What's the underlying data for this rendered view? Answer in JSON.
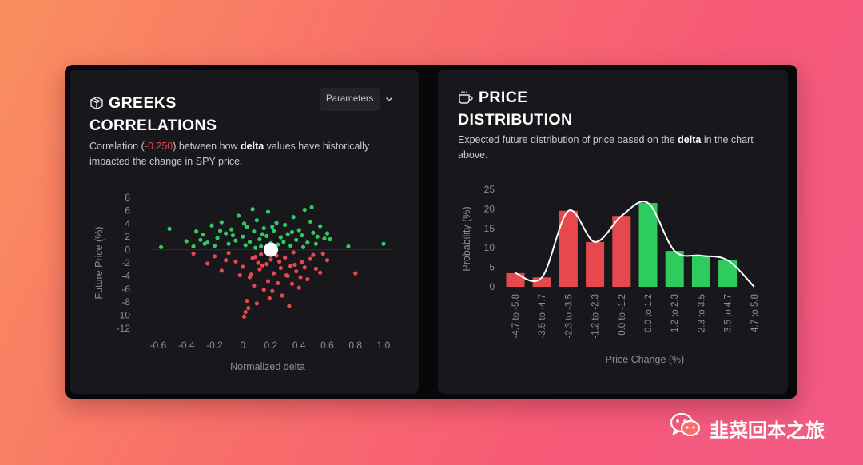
{
  "greeks": {
    "title_line1": "GREEKS",
    "title_line2": "CORRELATIONS",
    "params_label": "Parameters",
    "desc_pre": "Correlation (",
    "desc_value": "-0.250",
    "desc_mid": ") between how ",
    "desc_bold": "delta",
    "desc_post": " values have historically impacted the change in SPY price."
  },
  "price": {
    "title_line1": "PRICE",
    "title_line2": "DISTRIBUTION",
    "desc_pre": "Expected future distribution of price based on the ",
    "desc_bold": "delta",
    "desc_post": " in the chart above."
  },
  "watermark": "韭菜回本之旅",
  "colors": {
    "positive": "#2ecc5f",
    "negative": "#e5484d",
    "accent": "#ffffff"
  },
  "chart_data": [
    {
      "type": "scatter",
      "title": "",
      "xlabel": "Normalized delta",
      "ylabel": "Future Price (%)",
      "xlim": [
        -0.6,
        1.0
      ],
      "ylim": [
        -12,
        8
      ],
      "xticks": [
        "-0.6",
        "-0.4",
        "-0.2",
        "0",
        "0.2",
        "0.4",
        "0.6",
        "0.8",
        "1.0"
      ],
      "yticks": [
        "8",
        "6",
        "4",
        "2",
        "0",
        "-2",
        "-4",
        "-6",
        "-8",
        "-10",
        "-12"
      ],
      "highlight": [
        0.2,
        0
      ],
      "series": [
        {
          "color": "positive",
          "points": [
            [
              -0.52,
              3.2
            ],
            [
              -0.58,
              0.4
            ],
            [
              -0.35,
              0.5
            ],
            [
              -0.3,
              1.5
            ],
            [
              -0.28,
              2.3
            ],
            [
              -0.25,
              1.1
            ],
            [
              -0.22,
              3.7
            ],
            [
              -0.2,
              0.6
            ],
            [
              -0.18,
              1.8
            ],
            [
              -0.15,
              4.2
            ],
            [
              -0.12,
              2.5
            ],
            [
              -0.1,
              0.9
            ],
            [
              -0.08,
              3.1
            ],
            [
              -0.05,
              1.4
            ],
            [
              -0.03,
              5.2
            ],
            [
              0.0,
              2.0
            ],
            [
              0.02,
              0.7
            ],
            [
              0.03,
              3.5
            ],
            [
              0.05,
              1.2
            ],
            [
              0.07,
              6.2
            ],
            [
              0.08,
              2.8
            ],
            [
              0.1,
              4.5
            ],
            [
              0.12,
              1.6
            ],
            [
              0.13,
              0.5
            ],
            [
              0.15,
              3.3
            ],
            [
              0.17,
              2.1
            ],
            [
              0.18,
              5.8
            ],
            [
              0.2,
              1.0
            ],
            [
              0.22,
              2.9
            ],
            [
              0.24,
              4.1
            ],
            [
              0.25,
              0.8
            ],
            [
              0.27,
              1.9
            ],
            [
              0.3,
              3.8
            ],
            [
              0.32,
              2.4
            ],
            [
              0.34,
              0.6
            ],
            [
              0.36,
              5.0
            ],
            [
              0.38,
              1.5
            ],
            [
              0.4,
              3.0
            ],
            [
              0.42,
              2.2
            ],
            [
              0.44,
              6.1
            ],
            [
              0.46,
              1.1
            ],
            [
              0.48,
              4.3
            ],
            [
              0.5,
              2.6
            ],
            [
              0.52,
              0.9
            ],
            [
              0.55,
              3.6
            ],
            [
              0.58,
              1.7
            ],
            [
              0.62,
              1.6
            ],
            [
              0.75,
              0.5
            ],
            [
              1.0,
              0.9
            ],
            [
              -0.4,
              1.3
            ],
            [
              -0.33,
              2.8
            ],
            [
              -0.27,
              0.9
            ],
            [
              -0.16,
              2.9
            ],
            [
              -0.07,
              2.2
            ],
            [
              0.01,
              4.0
            ],
            [
              0.09,
              0.3
            ],
            [
              0.14,
              2.4
            ],
            [
              0.21,
              3.5
            ],
            [
              0.29,
              1.2
            ],
            [
              0.35,
              2.7
            ],
            [
              0.43,
              0.4
            ],
            [
              0.49,
              6.5
            ],
            [
              0.53,
              2.0
            ],
            [
              0.6,
              2.5
            ]
          ]
        },
        {
          "color": "negative",
          "points": [
            [
              -0.35,
              -0.6
            ],
            [
              -0.25,
              -2.1
            ],
            [
              -0.2,
              -1.0
            ],
            [
              -0.15,
              -3.2
            ],
            [
              -0.1,
              -0.5
            ],
            [
              -0.05,
              -1.8
            ],
            [
              0.0,
              -2.6
            ],
            [
              0.02,
              -9.5
            ],
            [
              0.03,
              -7.8
            ],
            [
              0.05,
              -4.2
            ],
            [
              0.07,
              -1.3
            ],
            [
              0.08,
              -5.5
            ],
            [
              0.1,
              -8.2
            ],
            [
              0.12,
              -3.0
            ],
            [
              0.13,
              -0.7
            ],
            [
              0.15,
              -6.1
            ],
            [
              0.17,
              -2.2
            ],
            [
              0.18,
              -4.8
            ],
            [
              0.2,
              -1.5
            ],
            [
              0.22,
              -3.6
            ],
            [
              0.24,
              -0.9
            ],
            [
              0.25,
              -5.1
            ],
            [
              0.27,
              -2.8
            ],
            [
              0.28,
              -7.0
            ],
            [
              0.3,
              -1.2
            ],
            [
              0.32,
              -4.0
            ],
            [
              0.34,
              -2.5
            ],
            [
              0.36,
              -0.4
            ],
            [
              0.38,
              -3.3
            ],
            [
              0.4,
              -5.8
            ],
            [
              0.42,
              -1.9
            ],
            [
              0.44,
              -2.7
            ],
            [
              0.46,
              -4.5
            ],
            [
              0.5,
              -0.8
            ],
            [
              0.55,
              -3.5
            ],
            [
              0.6,
              -1.6
            ],
            [
              0.8,
              -3.6
            ],
            [
              0.33,
              -8.6
            ],
            [
              0.19,
              -7.4
            ],
            [
              -0.12,
              -1.6
            ],
            [
              0.06,
              -3.8
            ],
            [
              0.11,
              -2.0
            ],
            [
              0.21,
              -6.3
            ],
            [
              0.26,
              -1.8
            ],
            [
              0.31,
              -3.9
            ],
            [
              0.37,
              -2.3
            ],
            [
              0.41,
              -4.2
            ],
            [
              0.48,
              -1.4
            ],
            [
              0.52,
              -2.9
            ],
            [
              0.57,
              -0.6
            ],
            [
              0.01,
              -10.2
            ],
            [
              0.04,
              -8.9
            ],
            [
              -0.02,
              -3.9
            ],
            [
              0.14,
              -2.4
            ],
            [
              0.09,
              -1.1
            ],
            [
              0.35,
              -5.2
            ]
          ]
        }
      ]
    },
    {
      "type": "bar",
      "title": "",
      "xlabel": "Price Change (%)",
      "ylabel": "Probability (%)",
      "ylim": [
        0,
        25
      ],
      "yticks": [
        "25",
        "20",
        "15",
        "10",
        "5",
        "0"
      ],
      "categories": [
        "-4.7 to -5.8",
        "-3.5 to -4.7",
        "-2.3 to -3.5",
        "-1.2 to -2.3",
        "0.0 to -1.2",
        "0.0 to 1.2",
        "1.2 to 2.3",
        "2.3 to 3.5",
        "3.5 to 4.7",
        "4.7 to 5.8"
      ],
      "values": [
        3.5,
        2.4,
        19.5,
        11.5,
        18.2,
        21.5,
        9.2,
        8.0,
        6.8,
        0
      ],
      "bar_colors": [
        "negative",
        "negative",
        "negative",
        "negative",
        "negative",
        "positive",
        "positive",
        "positive",
        "positive",
        "positive"
      ],
      "curve": [
        3.5,
        2.4,
        19.5,
        11.5,
        18.2,
        21.5,
        9.2,
        8.0,
        6.8,
        0
      ]
    }
  ]
}
